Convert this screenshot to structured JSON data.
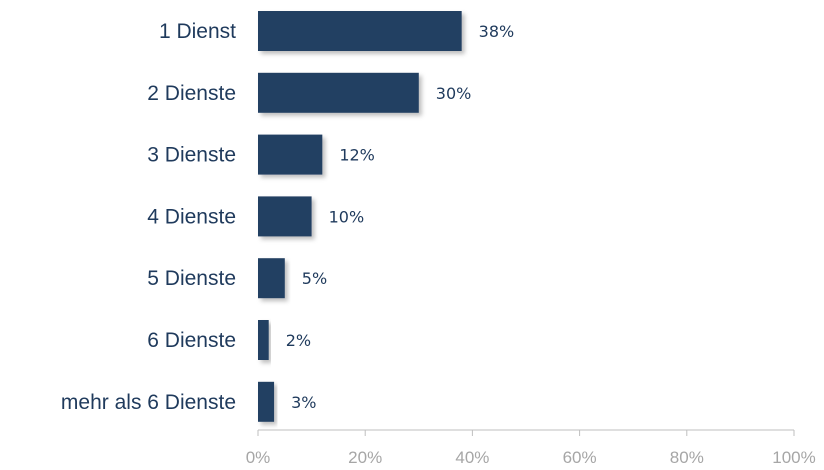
{
  "chart_data": {
    "type": "bar",
    "orientation": "horizontal",
    "categories": [
      "1 Dienst",
      "2 Dienste",
      "3 Dienste",
      "4 Dienste",
      "5 Dienste",
      "6 Dienste",
      "mehr als 6 Dienste"
    ],
    "values": [
      38,
      30,
      12,
      10,
      5,
      2,
      3
    ],
    "value_labels": [
      "38%",
      "30%",
      "12%",
      "10%",
      "5%",
      "2%",
      "3%"
    ],
    "xlim": [
      0,
      100
    ],
    "xticks": [
      0,
      20,
      40,
      60,
      80,
      100
    ],
    "xtick_labels": [
      "0%",
      "20%",
      "40%",
      "60%",
      "80%",
      "100%"
    ],
    "grid": false,
    "legend": "none",
    "colors": {
      "bar": "#243f62",
      "category_text": "#1f3a5c",
      "value_text": "#1f3a5c",
      "tick_text": "#a6a6a6",
      "axis": "#bfbfbf"
    }
  }
}
